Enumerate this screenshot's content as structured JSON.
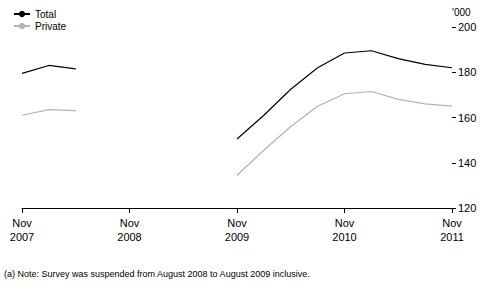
{
  "chart_data": {
    "type": "line",
    "categories": [
      "Nov 2007",
      null,
      null,
      null,
      "Nov 2008",
      null,
      null,
      null,
      "Nov 2009",
      null,
      null,
      null,
      "Nov 2010",
      null,
      null,
      null,
      "Nov 2011"
    ],
    "series": [
      {
        "name": "Total",
        "color": "#000000",
        "values": [
          179.5,
          183,
          181.5,
          null,
          null,
          null,
          null,
          null,
          150.5,
          161,
          172.5,
          182,
          188.5,
          189.5,
          186,
          183.5,
          182
        ]
      },
      {
        "name": "Private",
        "color": "#b3b3b3",
        "values": [
          161,
          163.5,
          163,
          null,
          null,
          null,
          null,
          null,
          134.5,
          145.5,
          156,
          165,
          170.5,
          171.5,
          168,
          166,
          165
        ]
      }
    ],
    "ylabel": "'000",
    "ylim": [
      120,
      200
    ],
    "yticks": [
      120,
      140,
      160,
      180,
      200
    ],
    "grid": false,
    "legend": "top-left",
    "annotations": [
      "(a) Note: Survey was suspended from August 2008 to August 2009 inclusive."
    ]
  }
}
